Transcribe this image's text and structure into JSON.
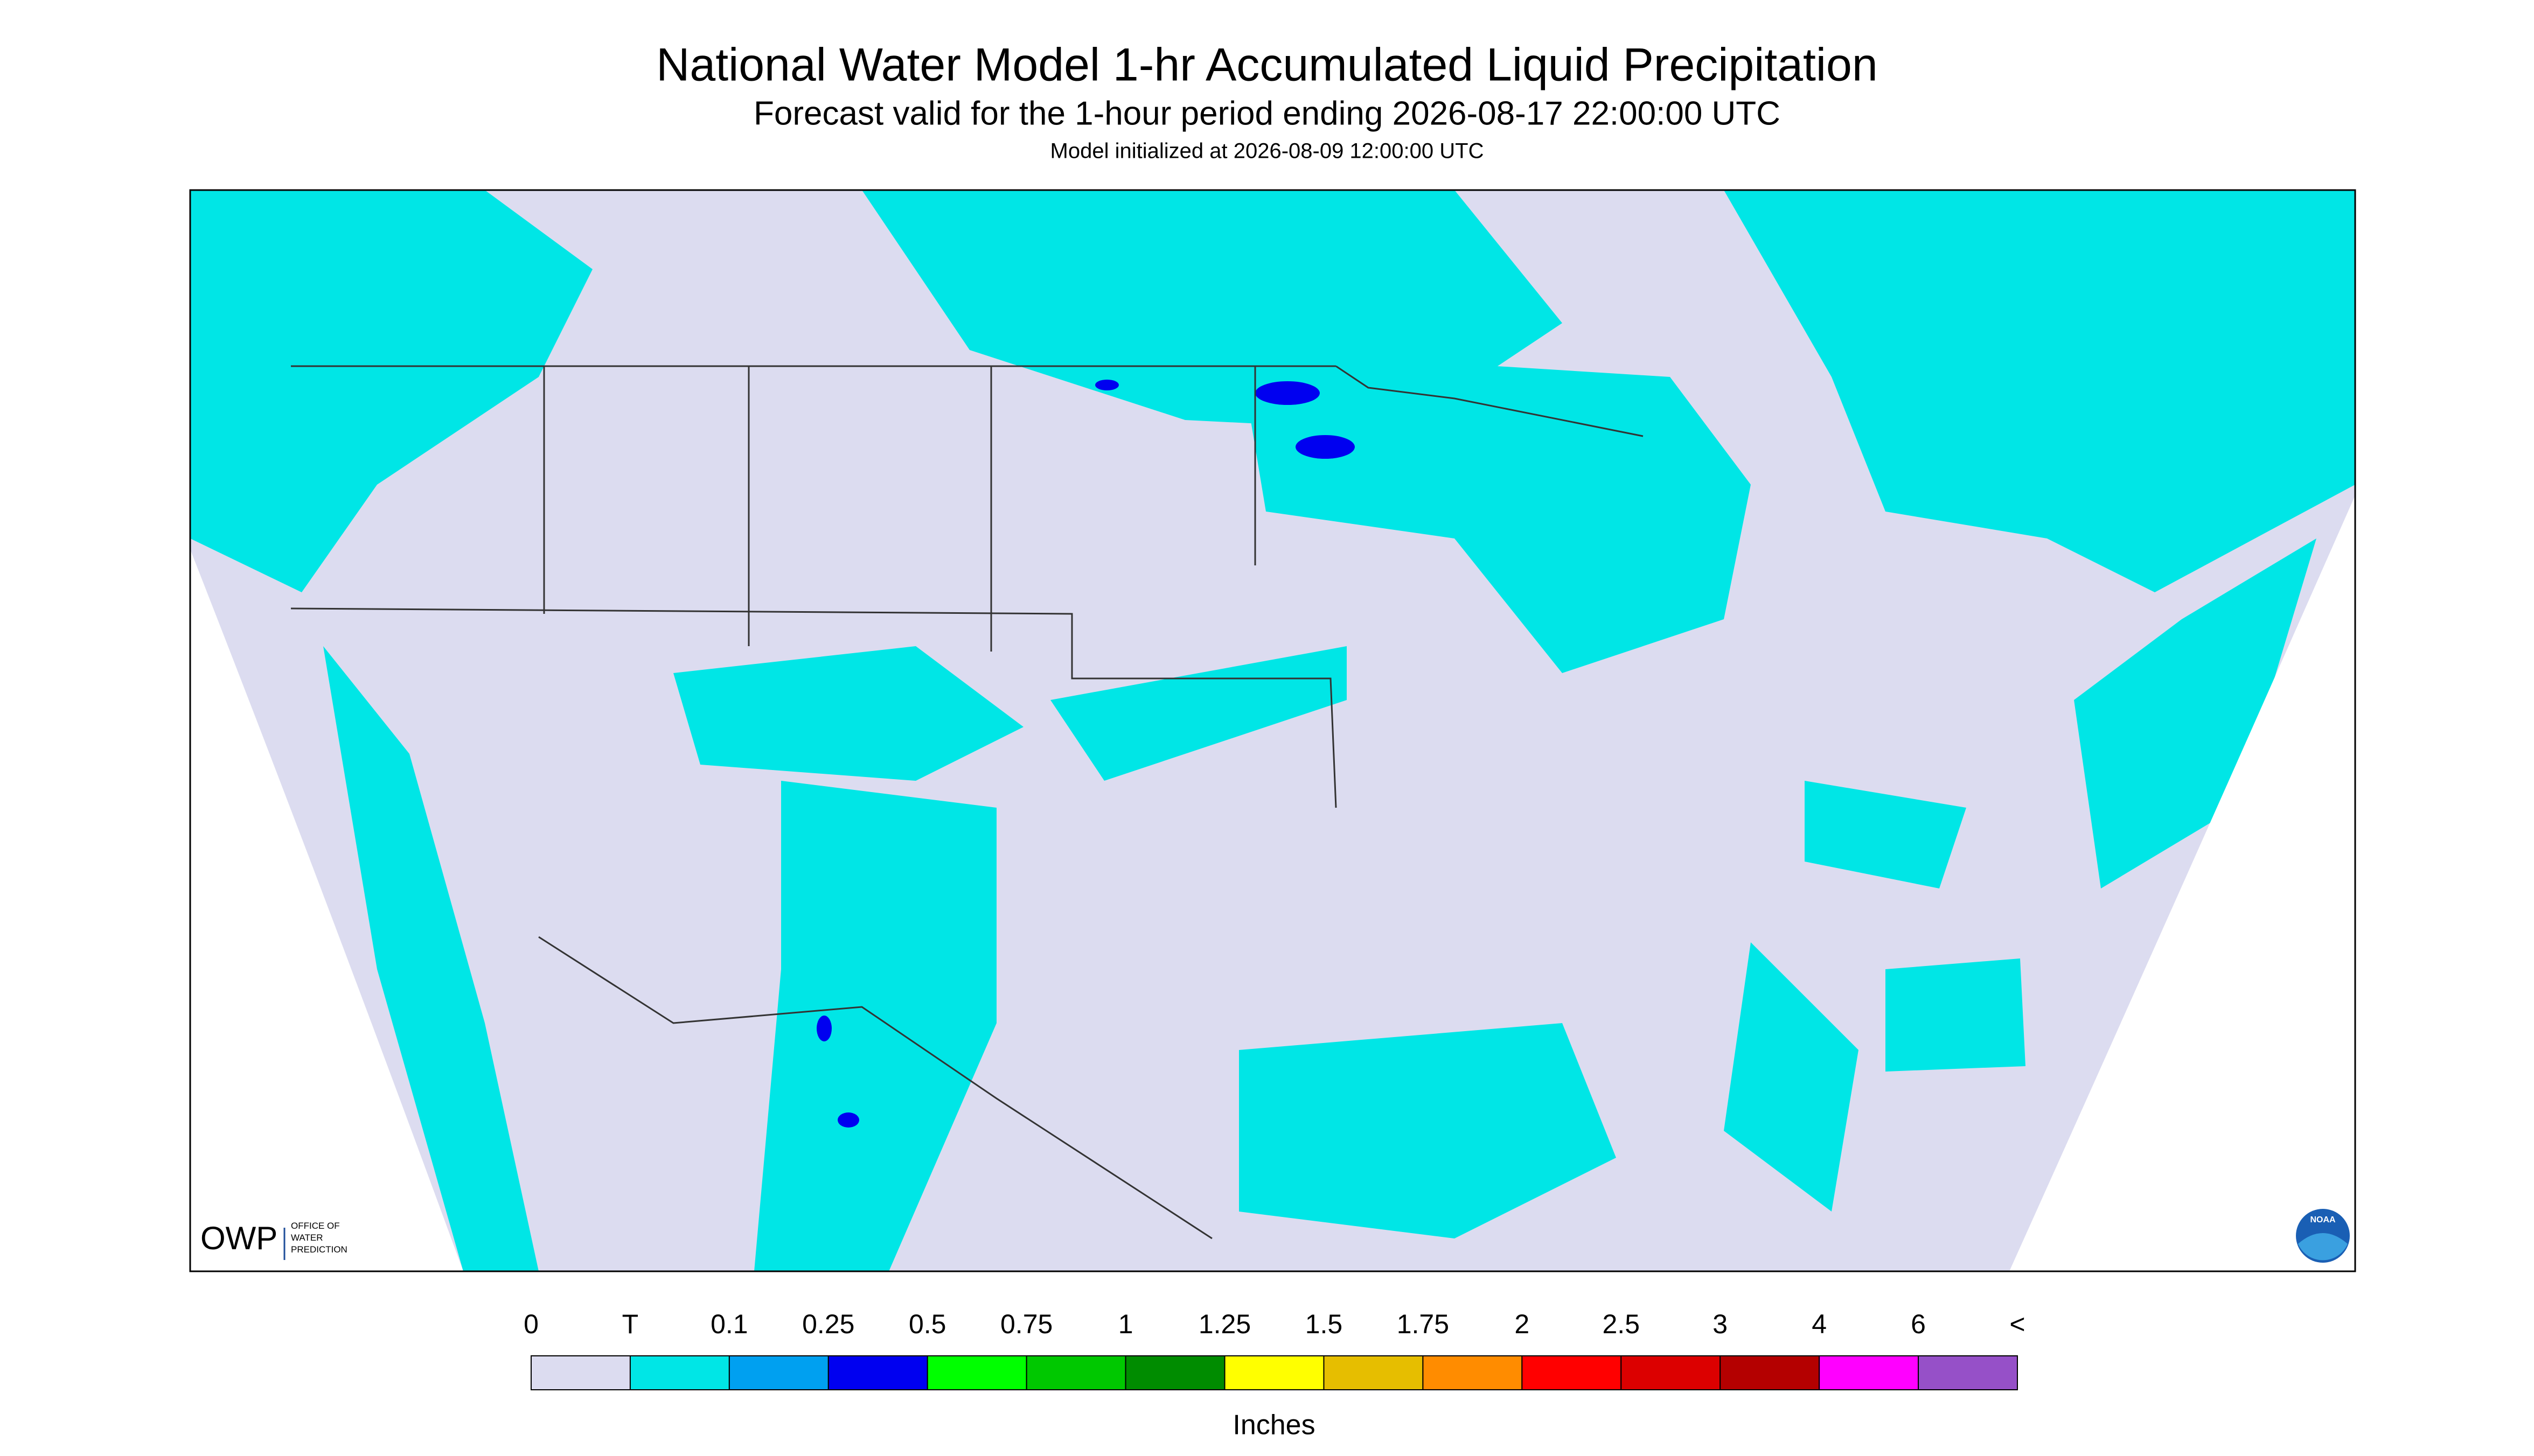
{
  "header": {
    "title": "National Water Model 1-hr Accumulated Liquid Precipitation",
    "subtitle": "Forecast valid for the 1-hour period ending 2026-08-17 22:00:00 UTC",
    "note": "Model initialized at 2026-08-09 12:00:00 UTC"
  },
  "logos": {
    "owp": "OWP",
    "owp_text": [
      "OFFICE OF",
      "WATER",
      "PREDICTION"
    ],
    "noaa": "NOAA"
  },
  "legend": {
    "labels": [
      "0",
      "T",
      "0.1",
      "0.25",
      "0.5",
      "0.75",
      "1",
      "1.25",
      "1.5",
      "1.75",
      "2",
      "2.5",
      "3",
      "4",
      "6",
      "<"
    ],
    "colors": [
      "#dcdcf0",
      "#00e6e6",
      "#00a0f0",
      "#0000f0",
      "#00ff00",
      "#00c800",
      "#008c00",
      "#ffff00",
      "#e6be00",
      "#ff8c00",
      "#ff0000",
      "#dc0000",
      "#b40000",
      "#ff00ff",
      "#9650c8"
    ],
    "title": "Inches"
  }
}
